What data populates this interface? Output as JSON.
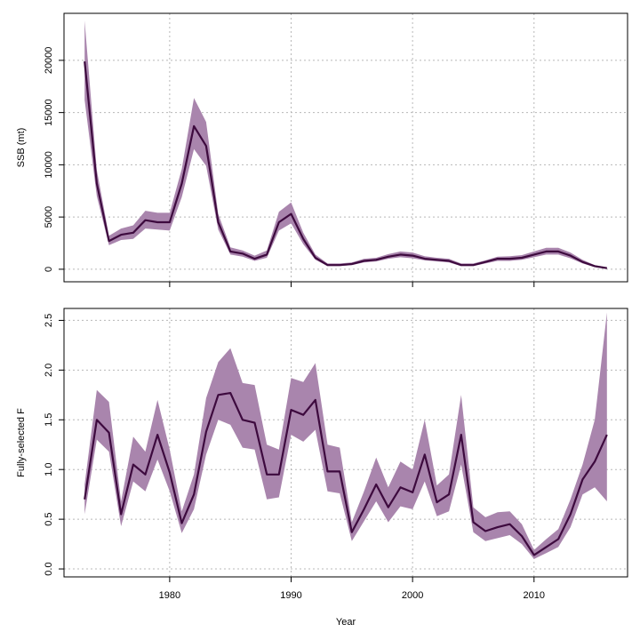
{
  "colors": {
    "band": "#a985ad",
    "line": "#3d0a3e",
    "grid": "#b8b8b8"
  },
  "x_axis": {
    "label": "Year",
    "ticks": [
      1980,
      1990,
      2000,
      2010
    ],
    "range": [
      1971.3,
      2017.7
    ]
  },
  "chart_data": [
    {
      "type": "area",
      "name": "ssb-panel",
      "ylabel": "SSB (mt)",
      "ylim": [
        -1200,
        24500
      ],
      "yticks": [
        0,
        5000,
        10000,
        15000,
        20000
      ],
      "x": [
        1973,
        1974,
        1975,
        1976,
        1977,
        1978,
        1979,
        1980,
        1981,
        1982,
        1983,
        1984,
        1985,
        1986,
        1987,
        1988,
        1989,
        1990,
        1991,
        1992,
        1993,
        1994,
        1995,
        1996,
        1997,
        1998,
        1999,
        2000,
        2001,
        2002,
        2003,
        2004,
        2005,
        2006,
        2007,
        2008,
        2009,
        2010,
        2011,
        2012,
        2013,
        2014,
        2015,
        2016
      ],
      "series": [
        {
          "name": "estimate",
          "values": [
            19900,
            8200,
            2700,
            3300,
            3500,
            4700,
            4500,
            4500,
            8200,
            13700,
            11800,
            4500,
            1700,
            1500,
            1000,
            1400,
            4500,
            5300,
            2900,
            1100,
            400,
            400,
            500,
            800,
            900,
            1200,
            1400,
            1300,
            1000,
            900,
            800,
            400,
            400,
            700,
            1000,
            1000,
            1100,
            1400,
            1700,
            1700,
            1300,
            700,
            300,
            100
          ]
        },
        {
          "name": "lower",
          "values": [
            16200,
            7000,
            2300,
            2800,
            2900,
            3900,
            3800,
            3700,
            6900,
            11500,
            9900,
            3800,
            1400,
            1200,
            800,
            1100,
            3700,
            4400,
            2400,
            900,
            300,
            300,
            400,
            650,
            750,
            1000,
            1150,
            1050,
            850,
            750,
            650,
            300,
            300,
            550,
            800,
            800,
            900,
            1150,
            1400,
            1400,
            1050,
            550,
            200,
            50
          ]
        },
        {
          "name": "upper",
          "values": [
            23800,
            9500,
            3200,
            3900,
            4200,
            5600,
            5400,
            5400,
            9600,
            16400,
            14100,
            5300,
            2100,
            1800,
            1300,
            1800,
            5500,
            6400,
            3500,
            1400,
            550,
            550,
            650,
            1000,
            1100,
            1450,
            1700,
            1600,
            1250,
            1100,
            1000,
            550,
            550,
            850,
            1200,
            1250,
            1350,
            1700,
            2050,
            2050,
            1600,
            900,
            400,
            200
          ]
        }
      ]
    },
    {
      "type": "area",
      "name": "f-panel",
      "ylabel": "Fully-selected F",
      "ylim": [
        -0.08,
        2.62
      ],
      "yticks": [
        0.0,
        0.5,
        1.0,
        1.5,
        2.0,
        2.5
      ],
      "x": [
        1973,
        1974,
        1975,
        1976,
        1977,
        1978,
        1979,
        1980,
        1981,
        1982,
        1983,
        1984,
        1985,
        1986,
        1987,
        1988,
        1989,
        1990,
        1991,
        1992,
        1993,
        1994,
        1995,
        1996,
        1997,
        1998,
        1999,
        2000,
        2001,
        2002,
        2003,
        2004,
        2005,
        2006,
        2007,
        2008,
        2009,
        2010,
        2011,
        2012,
        2013,
        2014,
        2015,
        2016
      ],
      "series": [
        {
          "name": "estimate",
          "values": [
            0.7,
            1.5,
            1.37,
            0.55,
            1.05,
            0.95,
            1.35,
            0.97,
            0.46,
            0.75,
            1.38,
            1.75,
            1.77,
            1.5,
            1.47,
            0.95,
            0.95,
            1.6,
            1.55,
            1.7,
            0.98,
            0.98,
            0.37,
            0.6,
            0.85,
            0.62,
            0.82,
            0.77,
            1.15,
            0.67,
            0.75,
            1.35,
            0.47,
            0.38,
            0.42,
            0.45,
            0.33,
            0.14,
            0.22,
            0.3,
            0.55,
            0.9,
            1.08,
            1.35
          ]
        },
        {
          "name": "lower",
          "values": [
            0.55,
            1.3,
            1.18,
            0.43,
            0.88,
            0.78,
            1.1,
            0.78,
            0.36,
            0.6,
            1.15,
            1.5,
            1.45,
            1.22,
            1.2,
            0.7,
            0.72,
            1.35,
            1.28,
            1.4,
            0.78,
            0.76,
            0.28,
            0.48,
            0.68,
            0.47,
            0.63,
            0.6,
            0.88,
            0.53,
            0.58,
            1.05,
            0.37,
            0.28,
            0.31,
            0.34,
            0.25,
            0.1,
            0.16,
            0.22,
            0.42,
            0.75,
            0.82,
            0.68
          ]
        },
        {
          "name": "upper",
          "values": [
            0.85,
            1.8,
            1.68,
            0.68,
            1.33,
            1.18,
            1.7,
            1.2,
            0.58,
            0.95,
            1.72,
            2.08,
            2.22,
            1.87,
            1.85,
            1.25,
            1.2,
            1.92,
            1.88,
            2.07,
            1.25,
            1.22,
            0.47,
            0.78,
            1.12,
            0.82,
            1.08,
            1.0,
            1.5,
            0.84,
            0.95,
            1.75,
            0.62,
            0.52,
            0.57,
            0.58,
            0.45,
            0.19,
            0.3,
            0.4,
            0.7,
            1.05,
            1.5,
            2.58
          ]
        }
      ]
    }
  ]
}
